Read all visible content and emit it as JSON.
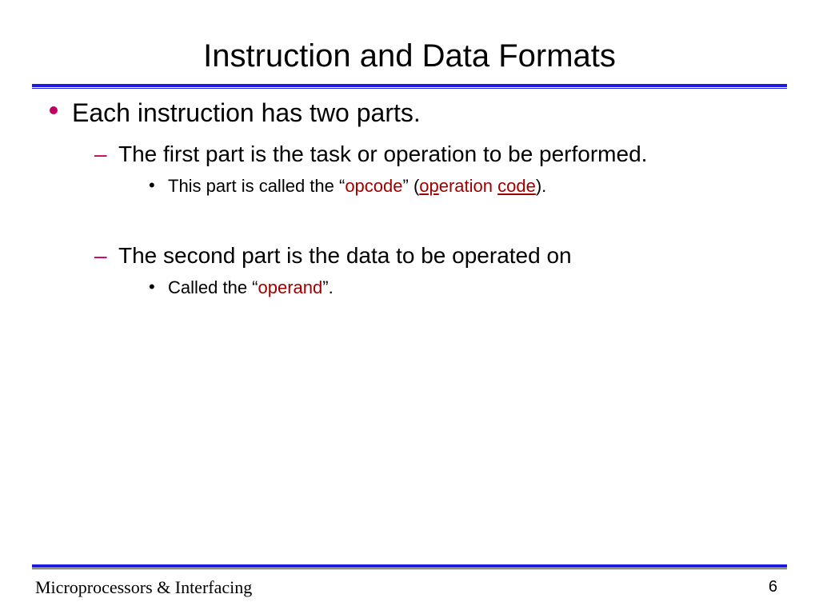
{
  "title": "Instruction and Data Formats",
  "bullets": {
    "l1": "Each instruction has two parts.",
    "l2a": "The first part is the task or operation to be performed.",
    "l3a_pre": "This part is called the “",
    "l3a_kw1": "opcode",
    "l3a_mid": "” (",
    "l3a_ul1": "op",
    "l3a_mid2": "eration ",
    "l3a_ul2": "code",
    "l3a_post": ").",
    "l2b": "The second part is the data to be operated on",
    "l3b_pre": "Called the “",
    "l3b_kw": "operand",
    "l3b_post": "”."
  },
  "footer": {
    "left": "Microprocessors & Interfacing",
    "page": "6"
  },
  "style": {
    "accent_rule_color": "#1a1ae0",
    "bullet_color": "#c00060",
    "keyword_color": "#a00000",
    "background": "#ffffff",
    "title_fontsize": 40,
    "l1_fontsize": 32,
    "l2_fontsize": 28,
    "l3_fontsize": 22,
    "footer_fontsize": 22,
    "footer_font": "Comic Sans MS"
  }
}
